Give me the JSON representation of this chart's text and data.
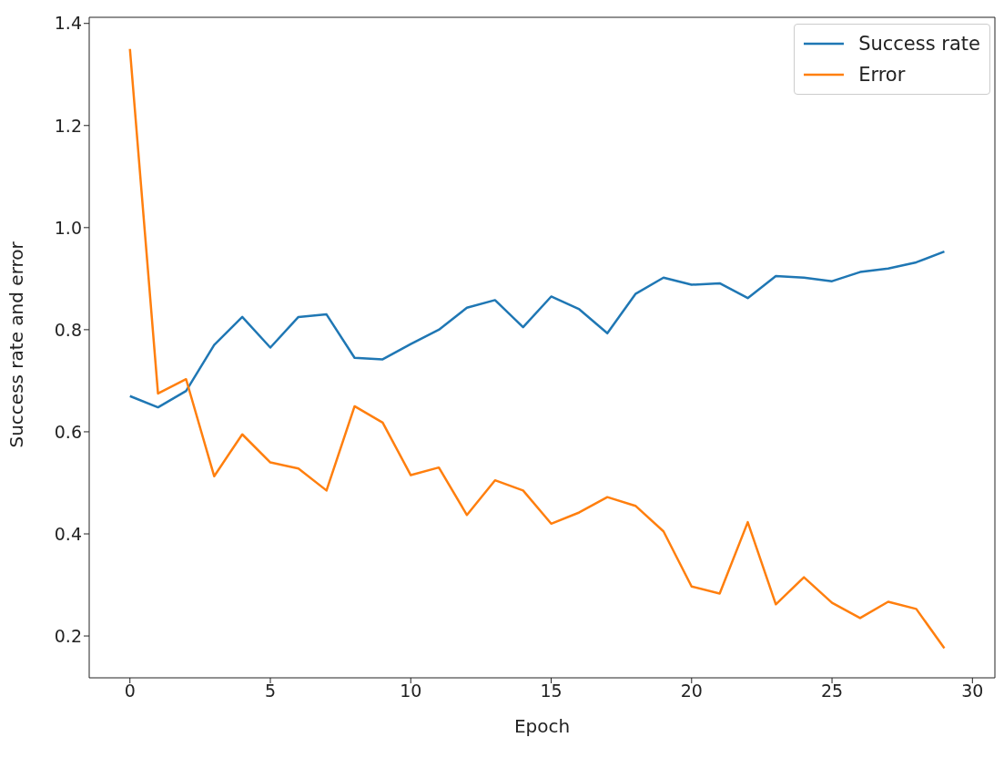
{
  "chart_data": {
    "type": "line",
    "xlabel": "Epoch",
    "ylabel": "Success rate and error",
    "x": [
      0,
      1,
      2,
      3,
      4,
      5,
      6,
      7,
      8,
      9,
      10,
      11,
      12,
      13,
      14,
      15,
      16,
      17,
      18,
      19,
      20,
      21,
      22,
      23,
      24,
      25,
      26,
      27,
      28,
      29
    ],
    "series": [
      {
        "name": "Success rate",
        "color": "#1f77b4",
        "values": [
          0.67,
          0.648,
          0.68,
          0.77,
          0.825,
          0.765,
          0.825,
          0.83,
          0.745,
          0.742,
          0.772,
          0.8,
          0.843,
          0.858,
          0.805,
          0.865,
          0.84,
          0.793,
          0.87,
          0.902,
          0.888,
          0.891,
          0.862,
          0.905,
          0.902,
          0.895,
          0.913,
          0.92,
          0.932,
          0.953
        ]
      },
      {
        "name": "Error",
        "color": "#ff7f0e",
        "values": [
          1.35,
          0.675,
          0.703,
          0.513,
          0.595,
          0.54,
          0.528,
          0.485,
          0.65,
          0.618,
          0.515,
          0.53,
          0.437,
          0.505,
          0.485,
          0.42,
          0.442,
          0.472,
          0.455,
          0.405,
          0.297,
          0.283,
          0.423,
          0.262,
          0.315,
          0.265,
          0.235,
          0.267,
          0.253,
          0.176
        ]
      }
    ],
    "xlim": [
      -1.45,
      30.8
    ],
    "xticks": [
      0,
      5,
      10,
      15,
      20,
      25,
      30
    ],
    "ylim": [
      0.118,
      1.412
    ],
    "yticks": [
      0.2,
      0.4,
      0.6,
      0.8,
      {
        "value": 1,
        "label": "1.0"
      },
      1.2,
      1.4
    ],
    "grid": false,
    "legend": "top right",
    "marker": "none",
    "line_style": "solid"
  }
}
